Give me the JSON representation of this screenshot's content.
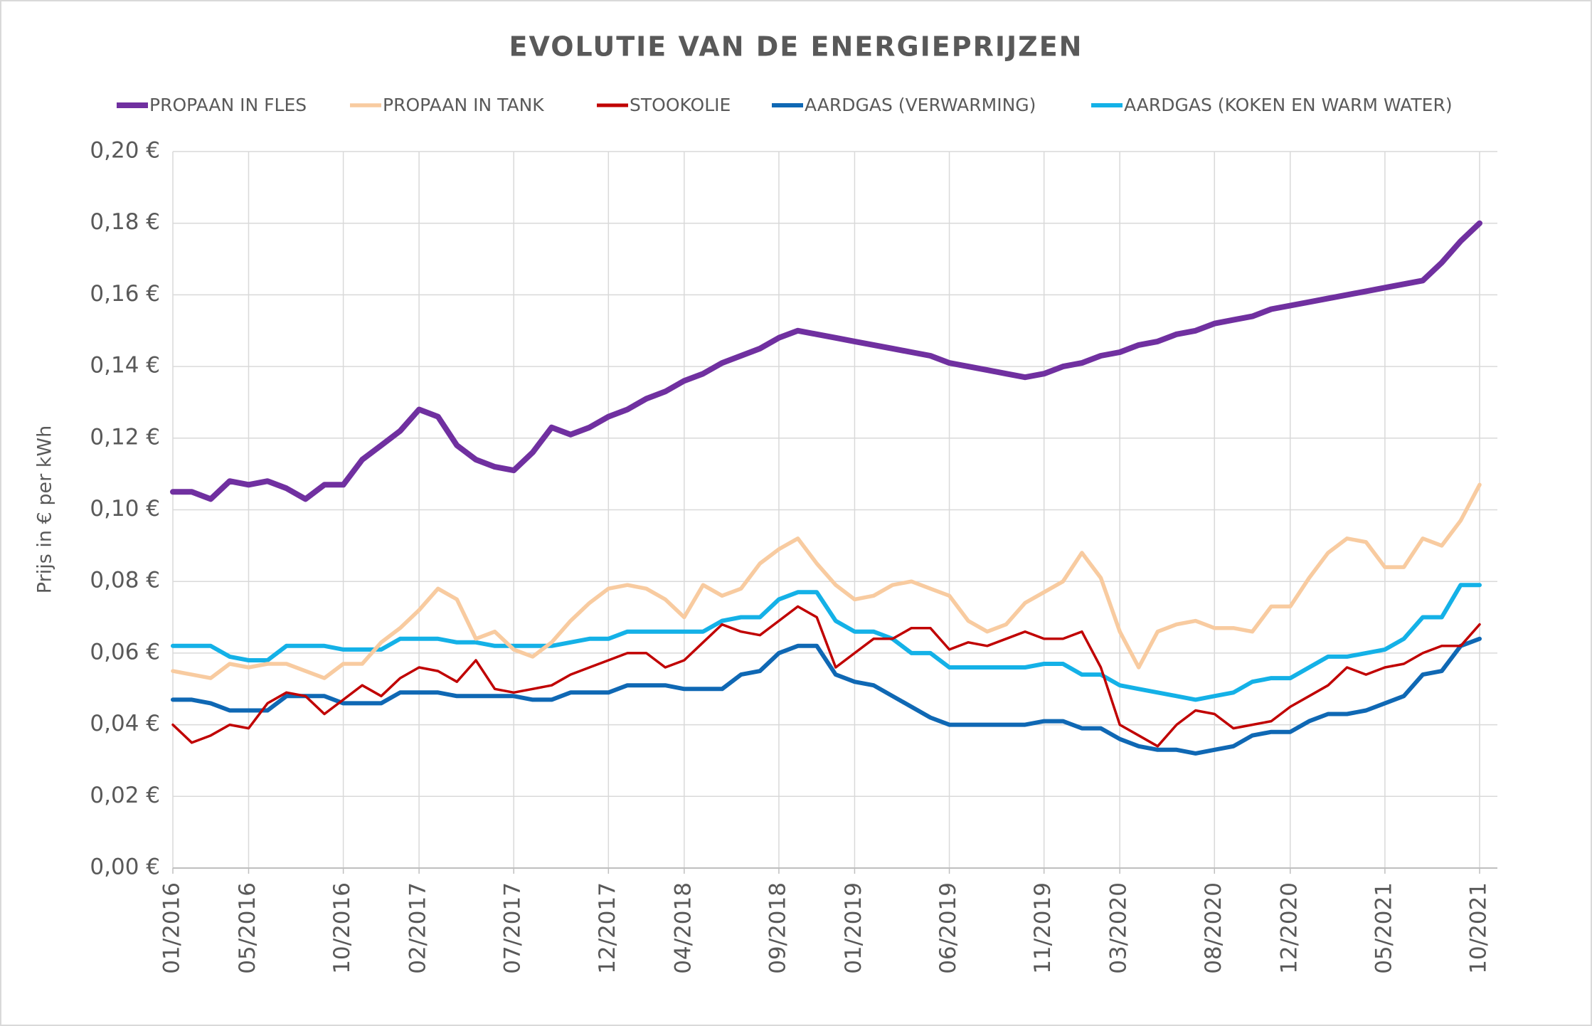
{
  "chart_data": {
    "type": "line",
    "title": "EVOLUTIE VAN DE ENERGIEPRIJZEN",
    "y_label": "Prijs in € per kWh",
    "x": [
      "01/2016",
      "02/2016",
      "03/2016",
      "04/2016",
      "05/2016",
      "06/2016",
      "07/2016",
      "08/2016",
      "09/2016",
      "10/2016",
      "11/2016",
      "12/2016",
      "01/2017",
      "02/2017",
      "03/2017",
      "04/2017",
      "05/2017",
      "06/2017",
      "07/2017",
      "08/2017",
      "09/2017",
      "10/2017",
      "11/2017",
      "12/2017",
      "01/2018",
      "02/2018",
      "03/2018",
      "04/2018",
      "05/2018",
      "06/2018",
      "07/2018",
      "08/2018",
      "09/2018",
      "10/2018",
      "11/2018",
      "12/2018",
      "01/2019",
      "02/2019",
      "03/2019",
      "04/2019",
      "05/2019",
      "06/2019",
      "07/2019",
      "08/2019",
      "09/2019",
      "10/2019",
      "11/2019",
      "12/2019",
      "01/2020",
      "02/2020",
      "03/2020",
      "04/2020",
      "05/2020",
      "06/2020",
      "07/2020",
      "08/2020",
      "09/2020",
      "10/2020",
      "11/2020",
      "12/2020",
      "01/2021",
      "02/2021",
      "03/2021",
      "04/2021",
      "05/2021",
      "06/2021",
      "07/2021",
      "08/2021",
      "09/2021",
      "10/2021"
    ],
    "xticks": [
      "01/2016",
      "05/2016",
      "10/2016",
      "02/2017",
      "07/2017",
      "12/2017",
      "04/2018",
      "09/2018",
      "01/2019",
      "06/2019",
      "11/2019",
      "03/2020",
      "08/2020",
      "12/2020",
      "05/2021",
      "10/2021"
    ],
    "ylim": [
      0,
      0.2
    ],
    "yticks": [
      {
        "value": 0,
        "label": "0,00 €"
      },
      {
        "value": 0.02,
        "label": "0,02 €"
      },
      {
        "value": 0.04,
        "label": "0,04 €"
      },
      {
        "value": 0.06,
        "label": "0,06 €"
      },
      {
        "value": 0.08,
        "label": "0,08 €"
      },
      {
        "value": 0.1,
        "label": "0,10 €"
      },
      {
        "value": 0.12,
        "label": "0,12 €"
      },
      {
        "value": 0.14,
        "label": "0,14 €"
      },
      {
        "value": 0.16,
        "label": "0,16 €"
      },
      {
        "value": 0.18,
        "label": "0,18 €"
      },
      {
        "value": 0.2,
        "label": "0,20 €"
      }
    ],
    "grid": true,
    "legend": "top",
    "series": [
      {
        "name": "PROPAAN IN FLES",
        "color": "#7030a0",
        "width": 8,
        "values": [
          0.105,
          0.105,
          0.103,
          0.108,
          0.107,
          0.108,
          0.106,
          0.103,
          0.107,
          0.107,
          0.114,
          0.118,
          0.122,
          0.128,
          0.126,
          0.118,
          0.114,
          0.112,
          0.111,
          0.116,
          0.123,
          0.121,
          0.123,
          0.126,
          0.128,
          0.131,
          0.133,
          0.136,
          0.138,
          0.141,
          0.143,
          0.145,
          0.148,
          0.15,
          0.149,
          0.148,
          0.147,
          0.146,
          0.145,
          0.144,
          0.143,
          0.141,
          0.14,
          0.139,
          0.138,
          0.137,
          0.138,
          0.14,
          0.141,
          0.143,
          0.144,
          0.146,
          0.147,
          0.149,
          0.15,
          0.152,
          0.153,
          0.154,
          0.156,
          0.157,
          0.158,
          0.159,
          0.16,
          0.161,
          0.162,
          0.163,
          0.164,
          0.169,
          0.175,
          0.18
        ]
      },
      {
        "name": "PROPAAN IN TANK",
        "color": "#f8cba0",
        "width": 5.5,
        "values": [
          0.055,
          0.054,
          0.053,
          0.057,
          0.056,
          0.057,
          0.057,
          0.055,
          0.053,
          0.057,
          0.057,
          0.063,
          0.067,
          0.072,
          0.078,
          0.075,
          0.064,
          0.066,
          0.061,
          0.059,
          0.063,
          0.069,
          0.074,
          0.078,
          0.079,
          0.078,
          0.075,
          0.07,
          0.079,
          0.076,
          0.078,
          0.085,
          0.089,
          0.092,
          0.085,
          0.079,
          0.075,
          0.076,
          0.079,
          0.08,
          0.078,
          0.076,
          0.069,
          0.066,
          0.068,
          0.074,
          0.077,
          0.08,
          0.088,
          0.081,
          0.066,
          0.056,
          0.066,
          0.068,
          0.069,
          0.067,
          0.067,
          0.066,
          0.073,
          0.073,
          0.081,
          0.088,
          0.092,
          0.091,
          0.084,
          0.084,
          0.092,
          0.09,
          0.097,
          0.107
        ]
      },
      {
        "name": "STOOKOLIE",
        "color": "#c00000",
        "width": 3.5,
        "values": [
          0.04,
          0.035,
          0.037,
          0.04,
          0.039,
          0.046,
          0.049,
          0.048,
          0.043,
          0.047,
          0.051,
          0.048,
          0.053,
          0.056,
          0.055,
          0.052,
          0.058,
          0.05,
          0.049,
          0.05,
          0.051,
          0.054,
          0.056,
          0.058,
          0.06,
          0.06,
          0.056,
          0.058,
          0.063,
          0.068,
          0.066,
          0.065,
          0.069,
          0.073,
          0.07,
          0.056,
          0.06,
          0.064,
          0.064,
          0.067,
          0.067,
          0.061,
          0.063,
          0.062,
          0.064,
          0.066,
          0.064,
          0.064,
          0.066,
          0.056,
          0.04,
          0.037,
          0.034,
          0.04,
          0.044,
          0.043,
          0.039,
          0.04,
          0.041,
          0.045,
          0.048,
          0.051,
          0.056,
          0.054,
          0.056,
          0.057,
          0.06,
          0.062,
          0.062,
          0.068
        ]
      },
      {
        "name": "AARDGAS (VERWARMING)",
        "color": "#0f68b4",
        "width": 6,
        "values": [
          0.047,
          0.047,
          0.046,
          0.044,
          0.044,
          0.044,
          0.048,
          0.048,
          0.048,
          0.046,
          0.046,
          0.046,
          0.049,
          0.049,
          0.049,
          0.048,
          0.048,
          0.048,
          0.048,
          0.047,
          0.047,
          0.049,
          0.049,
          0.049,
          0.051,
          0.051,
          0.051,
          0.05,
          0.05,
          0.05,
          0.054,
          0.055,
          0.06,
          0.062,
          0.062,
          0.054,
          0.052,
          0.051,
          0.048,
          0.045,
          0.042,
          0.04,
          0.04,
          0.04,
          0.04,
          0.04,
          0.041,
          0.041,
          0.039,
          0.039,
          0.036,
          0.034,
          0.033,
          0.033,
          0.032,
          0.033,
          0.034,
          0.037,
          0.038,
          0.038,
          0.041,
          0.043,
          0.043,
          0.044,
          0.046,
          0.048,
          0.054,
          0.055,
          0.062,
          0.064
        ]
      },
      {
        "name": "AARDGAS (KOKEN EN WARM WATER)",
        "color": "#14b1e7",
        "width": 6,
        "values": [
          0.062,
          0.062,
          0.062,
          0.059,
          0.058,
          0.058,
          0.062,
          0.062,
          0.062,
          0.061,
          0.061,
          0.061,
          0.064,
          0.064,
          0.064,
          0.063,
          0.063,
          0.062,
          0.062,
          0.062,
          0.062,
          0.063,
          0.064,
          0.064,
          0.066,
          0.066,
          0.066,
          0.066,
          0.066,
          0.069,
          0.07,
          0.07,
          0.075,
          0.077,
          0.077,
          0.069,
          0.066,
          0.066,
          0.064,
          0.06,
          0.06,
          0.056,
          0.056,
          0.056,
          0.056,
          0.056,
          0.057,
          0.057,
          0.054,
          0.054,
          0.051,
          0.05,
          0.049,
          0.048,
          0.047,
          0.048,
          0.049,
          0.052,
          0.053,
          0.053,
          0.056,
          0.059,
          0.059,
          0.06,
          0.061,
          0.064,
          0.07,
          0.07,
          0.079,
          0.079
        ]
      }
    ]
  }
}
